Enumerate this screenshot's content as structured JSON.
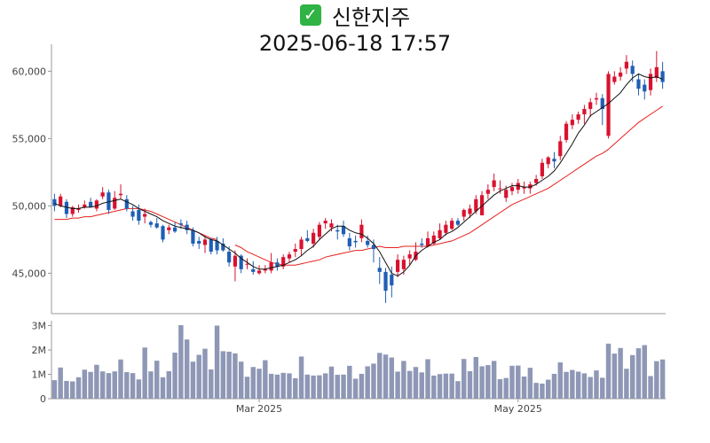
{
  "header": {
    "check_glyph": "✓",
    "stock_name": "신한지주",
    "datetime": "2025-06-18 17:57"
  },
  "colors": {
    "up": "#d9122f",
    "down": "#1f5fb4",
    "ma_short": "#111111",
    "ma_long": "#e8201e",
    "volume": "#8e97b5",
    "check": "#2fb344"
  },
  "chart_data": {
    "type": "candlestick",
    "price_axis": {
      "ylim": [
        42000,
        62000
      ],
      "ticks": [
        45000,
        50000,
        55000,
        60000
      ],
      "tick_labels": [
        "45,000",
        "50,000",
        "55,000",
        "60,000"
      ]
    },
    "volume_axis": {
      "ylim": [
        0,
        3200000
      ],
      "ticks": [
        0,
        1000000,
        2000000,
        3000000
      ],
      "tick_labels": [
        "0",
        "1M",
        "2M",
        "3M"
      ]
    },
    "x_ticks": [
      {
        "index": 34,
        "label": "Mar 2025"
      },
      {
        "index": 77,
        "label": "May 2025"
      }
    ],
    "candles": [
      [
        50500,
        50900,
        49600,
        50000,
        760000
      ],
      [
        50000,
        50900,
        49900,
        50700,
        1280000
      ],
      [
        50300,
        50500,
        49100,
        49400,
        730000
      ],
      [
        49400,
        50000,
        49200,
        49900,
        710000
      ],
      [
        49700,
        50100,
        49500,
        49800,
        880000
      ],
      [
        49900,
        50400,
        49800,
        50100,
        1190000
      ],
      [
        50300,
        50600,
        49900,
        49900,
        1100000
      ],
      [
        49800,
        50500,
        49600,
        50400,
        1390000
      ],
      [
        50700,
        51400,
        50500,
        51000,
        1120000
      ],
      [
        51000,
        51200,
        49400,
        49700,
        1050000
      ],
      [
        49800,
        51100,
        49700,
        50600,
        1120000
      ],
      [
        50800,
        51600,
        50500,
        50900,
        1610000
      ],
      [
        50500,
        50800,
        49600,
        49800,
        1090000
      ],
      [
        49600,
        50000,
        48900,
        49200,
        1050000
      ],
      [
        49700,
        50100,
        48600,
        48900,
        790000
      ],
      [
        49200,
        49800,
        48700,
        49400,
        2100000
      ],
      [
        48800,
        48900,
        48400,
        48600,
        1120000
      ],
      [
        48700,
        49100,
        48300,
        48400,
        1560000
      ],
      [
        48500,
        48600,
        47300,
        47500,
        880000
      ],
      [
        48200,
        48600,
        47900,
        48400,
        1130000
      ],
      [
        48400,
        48800,
        48000,
        48100,
        1890000
      ],
      [
        48700,
        49000,
        48300,
        48600,
        3020000
      ],
      [
        48600,
        48900,
        47900,
        48200,
        2430000
      ],
      [
        48200,
        48400,
        47000,
        47200,
        1520000
      ],
      [
        47400,
        47700,
        46800,
        47200,
        1800000
      ],
      [
        47100,
        47800,
        46500,
        47500,
        2050000
      ],
      [
        47500,
        47600,
        46400,
        46600,
        1200000
      ],
      [
        47400,
        47700,
        46400,
        46700,
        3000000
      ],
      [
        47200,
        47600,
        46600,
        46700,
        1950000
      ],
      [
        46600,
        47000,
        45500,
        45800,
        1930000
      ],
      [
        45500,
        46700,
        44400,
        46300,
        1860000
      ],
      [
        46300,
        46400,
        45000,
        45300,
        1520000
      ],
      [
        45700,
        46100,
        45300,
        45700,
        900000
      ],
      [
        45300,
        45900,
        44900,
        45100,
        1300000
      ],
      [
        45000,
        45600,
        44900,
        45200,
        1230000
      ],
      [
        45200,
        45600,
        45000,
        45300,
        1580000
      ],
      [
        45200,
        46500,
        45000,
        45800,
        1020000
      ],
      [
        45800,
        46100,
        45200,
        45500,
        990000
      ],
      [
        45500,
        46400,
        45300,
        46200,
        1060000
      ],
      [
        46100,
        46600,
        45800,
        46400,
        1040000
      ],
      [
        46600,
        47200,
        46200,
        46800,
        840000
      ],
      [
        46800,
        47700,
        46300,
        47500,
        1730000
      ],
      [
        47600,
        48200,
        47300,
        47400,
        990000
      ],
      [
        47200,
        48300,
        46900,
        48000,
        950000
      ],
      [
        47700,
        48800,
        47500,
        48600,
        960000
      ],
      [
        48700,
        49100,
        48300,
        48900,
        1040000
      ],
      [
        48400,
        49000,
        48100,
        48700,
        1320000
      ],
      [
        48200,
        48600,
        47500,
        48100,
        980000
      ],
      [
        48500,
        48900,
        47700,
        47900,
        990000
      ],
      [
        47600,
        48000,
        46700,
        47000,
        1350000
      ],
      [
        47400,
        47800,
        46900,
        47300,
        820000
      ],
      [
        47600,
        49000,
        47300,
        48600,
        1020000
      ],
      [
        47400,
        47800,
        46900,
        47100,
        1330000
      ],
      [
        47100,
        47500,
        45800,
        46800,
        1440000
      ],
      [
        45400,
        46200,
        44200,
        45100,
        1880000
      ],
      [
        45100,
        45400,
        42800,
        43700,
        1810000
      ],
      [
        44900,
        45500,
        43200,
        44100,
        1690000
      ],
      [
        45100,
        46400,
        44700,
        46000,
        1110000
      ],
      [
        45300,
        46300,
        44900,
        46000,
        1550000
      ],
      [
        46100,
        46700,
        45600,
        46400,
        1140000
      ],
      [
        46000,
        47300,
        45900,
        46600,
        1300000
      ],
      [
        47200,
        47600,
        46900,
        47100,
        1080000
      ],
      [
        47000,
        48100,
        46900,
        47600,
        1620000
      ],
      [
        47200,
        48100,
        47100,
        47800,
        950000
      ],
      [
        47600,
        48700,
        47500,
        48200,
        1010000
      ],
      [
        48000,
        48900,
        47800,
        48600,
        1030000
      ],
      [
        48300,
        49100,
        48200,
        48900,
        1030000
      ],
      [
        48900,
        49100,
        48500,
        48600,
        720000
      ],
      [
        49200,
        49800,
        48900,
        49700,
        1630000
      ],
      [
        49400,
        50100,
        49100,
        49800,
        1130000
      ],
      [
        49600,
        50800,
        49400,
        50500,
        1710000
      ],
      [
        49300,
        51100,
        49300,
        50800,
        1330000
      ],
      [
        50900,
        51600,
        50500,
        51200,
        1380000
      ],
      [
        51400,
        52400,
        51100,
        51900,
        1550000
      ],
      [
        51300,
        51900,
        50900,
        51300,
        800000
      ],
      [
        50600,
        51500,
        50300,
        51200,
        850000
      ],
      [
        51100,
        51700,
        50800,
        51400,
        1350000
      ],
      [
        51200,
        52000,
        50900,
        51700,
        1360000
      ],
      [
        51300,
        51800,
        50900,
        51400,
        910000
      ],
      [
        51300,
        51800,
        50900,
        51600,
        1270000
      ],
      [
        51700,
        52300,
        51500,
        52000,
        650000
      ],
      [
        52200,
        53500,
        52000,
        53200,
        620000
      ],
      [
        53100,
        53700,
        52800,
        53600,
        780000
      ],
      [
        53500,
        54000,
        52800,
        53300,
        1020000
      ],
      [
        53700,
        55200,
        53400,
        54800,
        1490000
      ],
      [
        54900,
        56300,
        54700,
        56100,
        1100000
      ],
      [
        56000,
        56800,
        55700,
        56400,
        1180000
      ],
      [
        56400,
        57000,
        56100,
        56800,
        1110000
      ],
      [
        56800,
        57500,
        56100,
        57200,
        1040000
      ],
      [
        57200,
        58000,
        56600,
        57700,
        890000
      ],
      [
        57900,
        58400,
        57500,
        58000,
        1160000
      ],
      [
        58000,
        58300,
        56000,
        57200,
        860000
      ],
      [
        55200,
        60000,
        55000,
        59800,
        2260000
      ],
      [
        59200,
        60000,
        59000,
        59600,
        1850000
      ],
      [
        59600,
        60300,
        59300,
        59900,
        2080000
      ],
      [
        60200,
        61200,
        59800,
        60700,
        1230000
      ],
      [
        60400,
        60800,
        59200,
        59800,
        1790000
      ],
      [
        59400,
        59800,
        58200,
        58700,
        2070000
      ],
      [
        59000,
        59400,
        57900,
        58500,
        2200000
      ],
      [
        58600,
        60200,
        58200,
        59800,
        930000
      ],
      [
        59500,
        61500,
        59200,
        60300,
        1540000
      ],
      [
        60000,
        60700,
        58700,
        59200,
        1610000
      ]
    ],
    "ma_short": {
      "start_index": 0,
      "values": [
        50200,
        50000,
        49900,
        49800,
        49800,
        49900,
        49900,
        50000,
        50200,
        50300,
        50400,
        50500,
        50300,
        50100,
        49800,
        49600,
        49400,
        49200,
        48900,
        48700,
        48500,
        48400,
        48300,
        48200,
        48000,
        47700,
        47500,
        47400,
        47100,
        46800,
        46500,
        46100,
        45800,
        45500,
        45300,
        45300,
        45400,
        45500,
        45600,
        45800,
        46000,
        46300,
        46700,
        47000,
        47500,
        47900,
        48300,
        48500,
        48500,
        48200,
        48000,
        47900,
        47600,
        47200,
        46600,
        45800,
        45000,
        44800,
        45100,
        45600,
        46300,
        46700,
        47000,
        47300,
        47500,
        47900,
        48100,
        48400,
        48800,
        49200,
        49600,
        50000,
        50400,
        50800,
        51100,
        51300,
        51500,
        51500,
        51400,
        51400,
        51600,
        51900,
        52200,
        52600,
        53200,
        53900,
        54600,
        55400,
        56000,
        56700,
        57000,
        57300,
        57600,
        58000,
        58400,
        59000,
        59500,
        59800,
        59600,
        59500,
        59600,
        59400
      ]
    },
    "ma_long": {
      "start_index": 0,
      "values": [
        49000,
        49000,
        49000,
        49100,
        49100,
        49200,
        49200,
        49300,
        49400,
        49500,
        49600,
        49700,
        49800,
        49800,
        49800,
        49700,
        49600,
        49400,
        49200,
        49000,
        48800,
        48600,
        48400,
        48200,
        48000,
        47800,
        47600,
        47500,
        null,
        null,
        47100,
        46900,
        46600,
        46400,
        46200,
        46000,
        45800,
        45700,
        45600,
        45600,
        45600,
        45700,
        45800,
        45900,
        46000,
        46200,
        46300,
        46400,
        46500,
        46600,
        46700,
        46700,
        46800,
        46900,
        47000,
        46900,
        46900,
        46900,
        47000,
        47000,
        47000,
        47000,
        47000,
        47100,
        47200,
        47300,
        47400,
        47600,
        47800,
        48000,
        48300,
        48600,
        48900,
        49200,
        49500,
        49800,
        50100,
        50300,
        50500,
        50700,
        50900,
        51100,
        51300,
        51600,
        51900,
        52200,
        52500,
        52800,
        53100,
        53400,
        53700,
        53900,
        54200,
        54600,
        55000,
        55400,
        55800,
        56200,
        56500,
        56800,
        57100,
        57400
      ]
    }
  }
}
